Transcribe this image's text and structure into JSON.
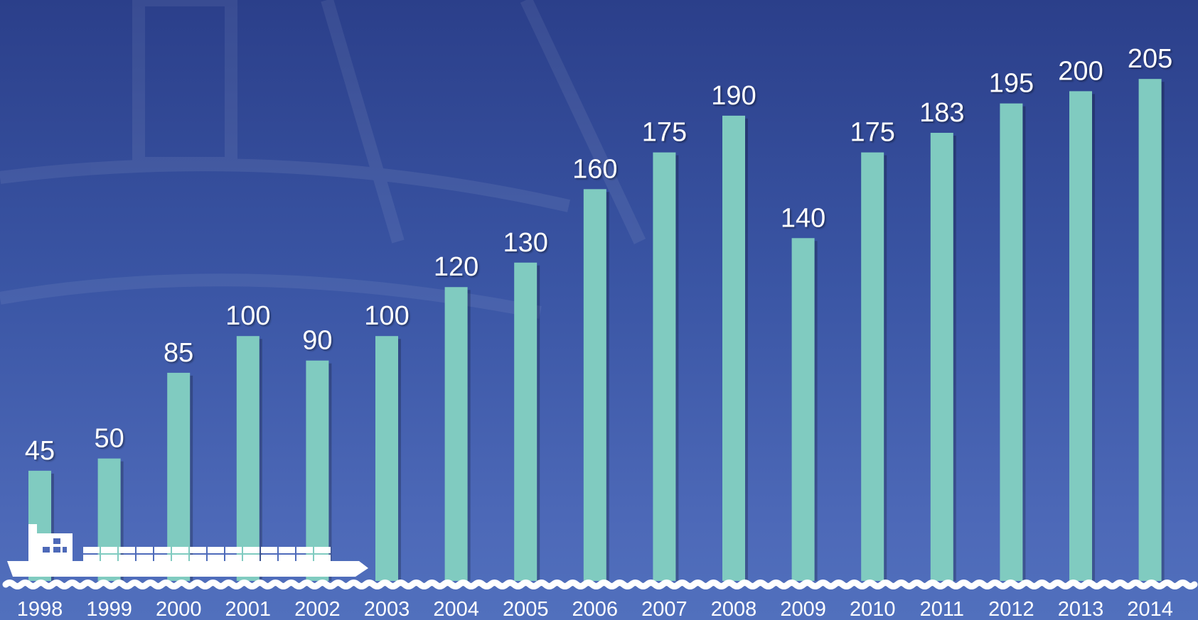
{
  "colors": {
    "background_top": "#2b3f8a",
    "background_bottom": "#5170bd",
    "bar": "#80cbc0",
    "text": "#ffffff",
    "ship": "#ffffff"
  },
  "decorations": {
    "ship": "container-ship-icon",
    "waves": "wave-line"
  },
  "chart_data": {
    "type": "bar",
    "categories": [
      "1998",
      "1999",
      "2000",
      "2001",
      "2002",
      "2003",
      "2004",
      "2005",
      "2006",
      "2007",
      "2008",
      "2009",
      "2010",
      "2011",
      "2012",
      "2013",
      "2014"
    ],
    "values": [
      45,
      50,
      85,
      100,
      90,
      100,
      120,
      130,
      160,
      175,
      190,
      140,
      175,
      183,
      195,
      200,
      205
    ],
    "data_labels": [
      "45",
      "50",
      "85",
      "100",
      "90",
      "100",
      "120",
      "130",
      "160",
      "175",
      "190",
      "140",
      "175",
      "183",
      "195",
      "200",
      "205"
    ],
    "title": "",
    "xlabel": "",
    "ylabel": "",
    "ylim": [
      0,
      220
    ],
    "grid": false,
    "legend": "none"
  }
}
